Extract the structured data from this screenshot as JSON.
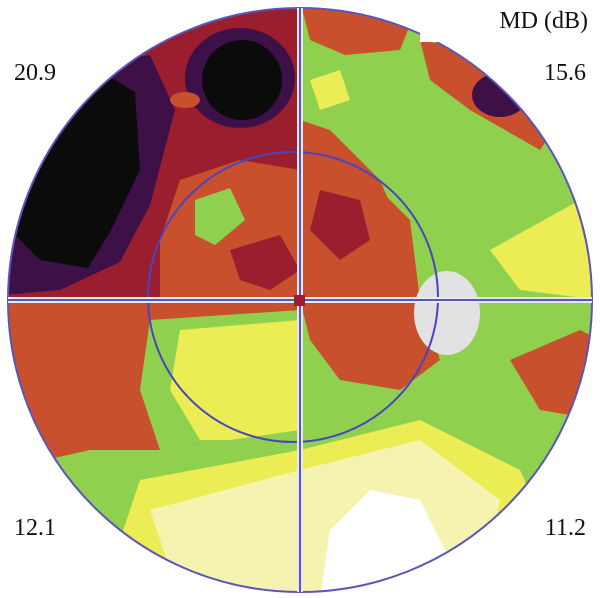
{
  "legend": "MD (dB)",
  "quadrants": [
    "20.9",
    "15.6",
    "12.1",
    "11.2"
  ]
}
